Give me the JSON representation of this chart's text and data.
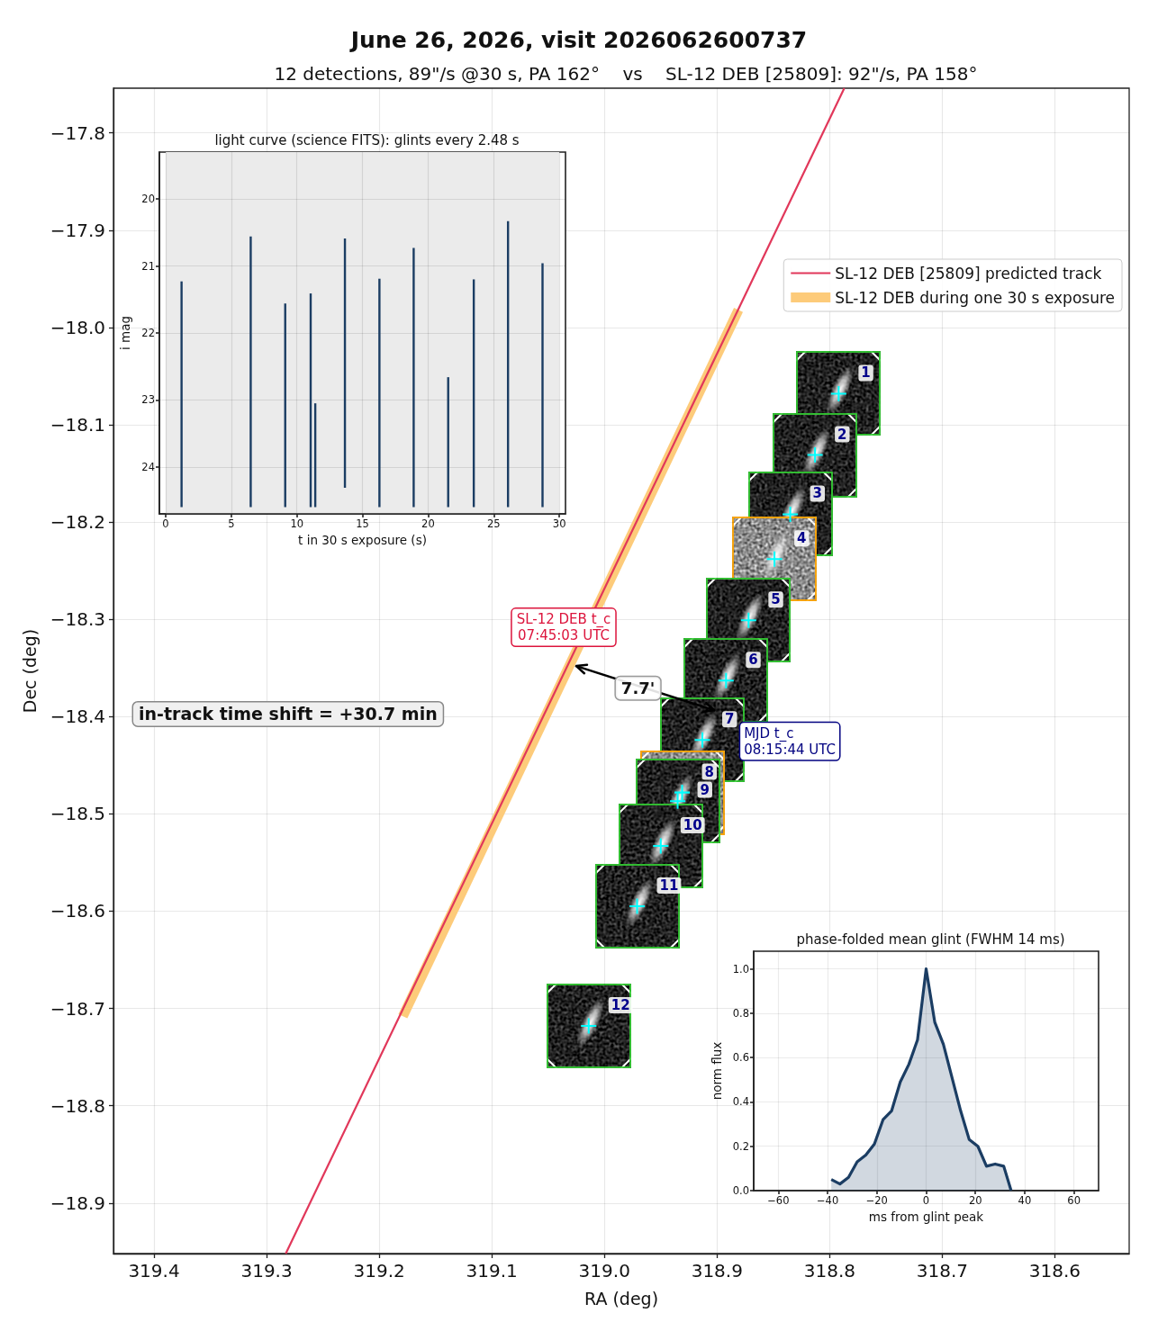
{
  "chart_data": [
    {
      "type": "scatter",
      "title": "June 26, 2026, visit 2026062600737",
      "subtitle": "12 detections, 89\"/s @30 s, PA 162°    vs    SL-12 DEB [25809]: 92\"/s, PA 158°",
      "xlabel": "RA (deg)",
      "ylabel": "Dec (deg)",
      "series": [
        {
          "name": "SL-12 DEB [25809] predicted track",
          "type": "line",
          "marker": "none",
          "color": "#e1375a",
          "x": [
            319.283,
            318.787
          ],
          "values": [
            -18.952,
            -17.754
          ]
        },
        {
          "name": "SL-12 DEB during one 30 s exposure",
          "type": "line",
          "marker": "none",
          "color": "#fdcb7a",
          "x": [
            319.179,
            318.881
          ],
          "values": [
            -18.708,
            -17.982
          ]
        },
        {
          "marker": "cross",
          "color": "#00ffff",
          "x": [
            318.792,
            318.813,
            318.835,
            318.849,
            318.872,
            318.892,
            318.913,
            318.931,
            318.935,
            318.95,
            318.971,
            319.014
          ],
          "values": [
            -18.068,
            -18.131,
            -18.192,
            -18.238,
            -18.301,
            -18.363,
            -18.424,
            -18.478,
            -18.487,
            -18.533,
            -18.595,
            -18.718
          ]
        }
      ],
      "xlim": [
        319.436,
        318.534
      ],
      "ylim": [
        -18.952,
        -17.754
      ],
      "xticks": [
        319.4,
        319.3,
        319.2,
        319.1,
        {
          "value": 319,
          "label": "319.0"
        },
        318.9,
        318.8,
        318.7,
        318.6
      ],
      "yticks": [
        {
          "value": -17.8,
          "label": "−17.8"
        },
        {
          "value": -17.9,
          "label": "−17.9"
        },
        {
          "value": -18,
          "label": "−18.0"
        },
        {
          "value": -18.1,
          "label": "−18.1"
        },
        {
          "value": -18.2,
          "label": "−18.2"
        },
        {
          "value": -18.3,
          "label": "−18.3"
        },
        {
          "value": -18.4,
          "label": "−18.4"
        },
        {
          "value": -18.5,
          "label": "−18.5"
        },
        {
          "value": -18.6,
          "label": "−18.6"
        },
        {
          "value": -18.7,
          "label": "−18.7"
        },
        {
          "value": -18.8,
          "label": "−18.8"
        },
        {
          "value": -18.9,
          "label": "−18.9"
        }
      ],
      "grid": true,
      "legend": "top right",
      "annotations": [
        {
          "text": "SL-12 DEB t_c\n07:45:03 UTC",
          "x": 319.025,
          "y": -18.348
        },
        "MJD t_c\n08:15:44 UTC",
        "7.7'",
        "in-track time shift = +30.7 min",
        {
          "text": "1",
          "x": 318.792,
          "y": -18.068
        },
        {
          "text": "2",
          "x": 318.813,
          "y": -18.131
        },
        {
          "text": "3",
          "x": 318.835,
          "y": -18.192
        },
        {
          "text": "4",
          "x": 318.849,
          "y": -18.238
        },
        {
          "text": "5",
          "x": 318.872,
          "y": -18.301
        },
        {
          "text": "6",
          "x": 318.892,
          "y": -18.363
        },
        {
          "text": "7",
          "x": 318.913,
          "y": -18.424
        },
        {
          "text": "8",
          "x": 318.931,
          "y": -18.478
        },
        {
          "text": "9",
          "x": 318.935,
          "y": -18.487
        },
        {
          "text": "10",
          "x": 318.95,
          "y": -18.533
        },
        {
          "text": "11",
          "x": 318.971,
          "y": -18.595
        },
        {
          "text": "12",
          "x": 319.014,
          "y": -18.718
        }
      ]
    },
    {
      "type": "line",
      "title": "light curve (science FITS): glints every 2.48 s",
      "xlabel": "t in 30 s exposure (s)",
      "ylabel": "i mag",
      "series": [
        {
          "color": "#1b3d63",
          "x": [
            1.21,
            1.21
          ],
          "values": [
            24.6,
            21.23
          ]
        },
        {
          "color": "#1b3d63",
          "x": [
            6.48,
            6.48
          ],
          "values": [
            24.6,
            20.56
          ]
        },
        {
          "color": "#1b3d63",
          "x": [
            9.11,
            9.11
          ],
          "values": [
            24.6,
            21.56
          ]
        },
        {
          "color": "#1b3d63",
          "x": [
            11.05,
            11.05
          ],
          "values": [
            24.6,
            21.41
          ]
        },
        {
          "color": "#1b3d63",
          "x": [
            11.4,
            11.4
          ],
          "values": [
            24.6,
            23.05
          ]
        },
        {
          "color": "#1b3d63",
          "x": [
            13.66,
            13.66
          ],
          "values": [
            24.31,
            20.59
          ]
        },
        {
          "color": "#1b3d63",
          "x": [
            16.29,
            16.29
          ],
          "values": [
            24.6,
            21.19
          ]
        },
        {
          "color": "#1b3d63",
          "x": [
            18.9,
            18.9
          ],
          "values": [
            24.6,
            20.73
          ]
        },
        {
          "color": "#1b3d63",
          "x": [
            21.53,
            21.53
          ],
          "values": [
            24.6,
            22.66
          ]
        },
        {
          "color": "#1b3d63",
          "x": [
            23.48,
            23.48
          ],
          "values": [
            24.6,
            21.2
          ]
        },
        {
          "color": "#1b3d63",
          "x": [
            26.09,
            26.09
          ],
          "values": [
            24.6,
            20.33
          ]
        },
        {
          "color": "#1b3d63",
          "x": [
            28.72,
            28.72
          ],
          "values": [
            24.6,
            20.96
          ]
        }
      ],
      "bands": [
        {
          "axis": "x",
          "from": 0,
          "to": 30,
          "color": "#ebebeb"
        }
      ],
      "xlim": [
        -0.48,
        30.47
      ],
      "ylim": [
        24.7,
        19.3
      ],
      "xticks": [
        0,
        5,
        10,
        15,
        20,
        25,
        30
      ],
      "yticks": [
        20,
        21,
        22,
        23,
        24
      ],
      "grid": true
    },
    {
      "type": "area",
      "title": "phase-folded mean glint (FWHM 14 ms)",
      "xlabel": "ms from glint peak",
      "ylabel": "norm flux",
      "series": [
        {
          "color": "#1b3d63",
          "x": [
            -38.5,
            -35,
            -31.5,
            -28,
            -24.5,
            -21,
            -17.5,
            -14,
            -10.5,
            -7,
            -3.5,
            0,
            3.5,
            7,
            10.5,
            14,
            17.5,
            21,
            24.5,
            28,
            31.5,
            34.5
          ],
          "values": [
            0.05,
            0.03,
            0.06,
            0.13,
            0.16,
            0.21,
            0.32,
            0.36,
            0.49,
            0.57,
            0.68,
            1.0,
            0.76,
            0.66,
            0.51,
            0.36,
            0.23,
            0.2,
            0.11,
            0.12,
            0.11,
            0
          ]
        }
      ],
      "xlim": [
        -70,
        70
      ],
      "ylim": [
        0,
        1.08
      ],
      "xticks": [
        {
          "value": -60,
          "label": "−60"
        },
        {
          "value": -40,
          "label": "−40"
        },
        {
          "value": -20,
          "label": "−20"
        },
        0,
        20,
        40,
        60
      ],
      "yticks": [
        {
          "value": 0,
          "label": "0.0"
        },
        0.2,
        0.4,
        0.6,
        0.8,
        {
          "value": 1,
          "label": "1.0"
        }
      ],
      "grid": true
    }
  ]
}
